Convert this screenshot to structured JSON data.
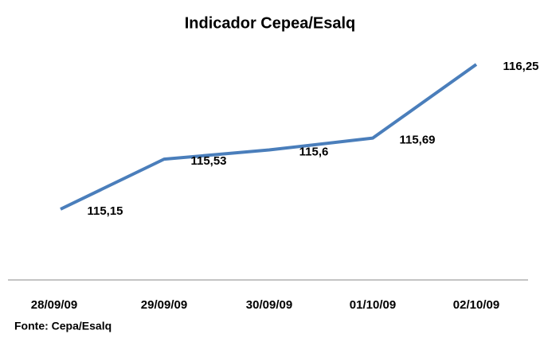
{
  "chart_data": {
    "type": "line",
    "title": "Indicador Cepea/Esalq",
    "categories": [
      "28/09/09",
      "29/09/09",
      "30/09/09",
      "01/10/09",
      "02/10/09"
    ],
    "series": [
      {
        "color": "#4a7ebb",
        "values": [
          115.15,
          115.53,
          115.6,
          115.69,
          116.25
        ],
        "value_labels": [
          "115,15",
          "115,53",
          "115,6",
          "115,69",
          "116,25"
        ]
      }
    ],
    "source": "Fonte: Cepa/Esalq"
  }
}
